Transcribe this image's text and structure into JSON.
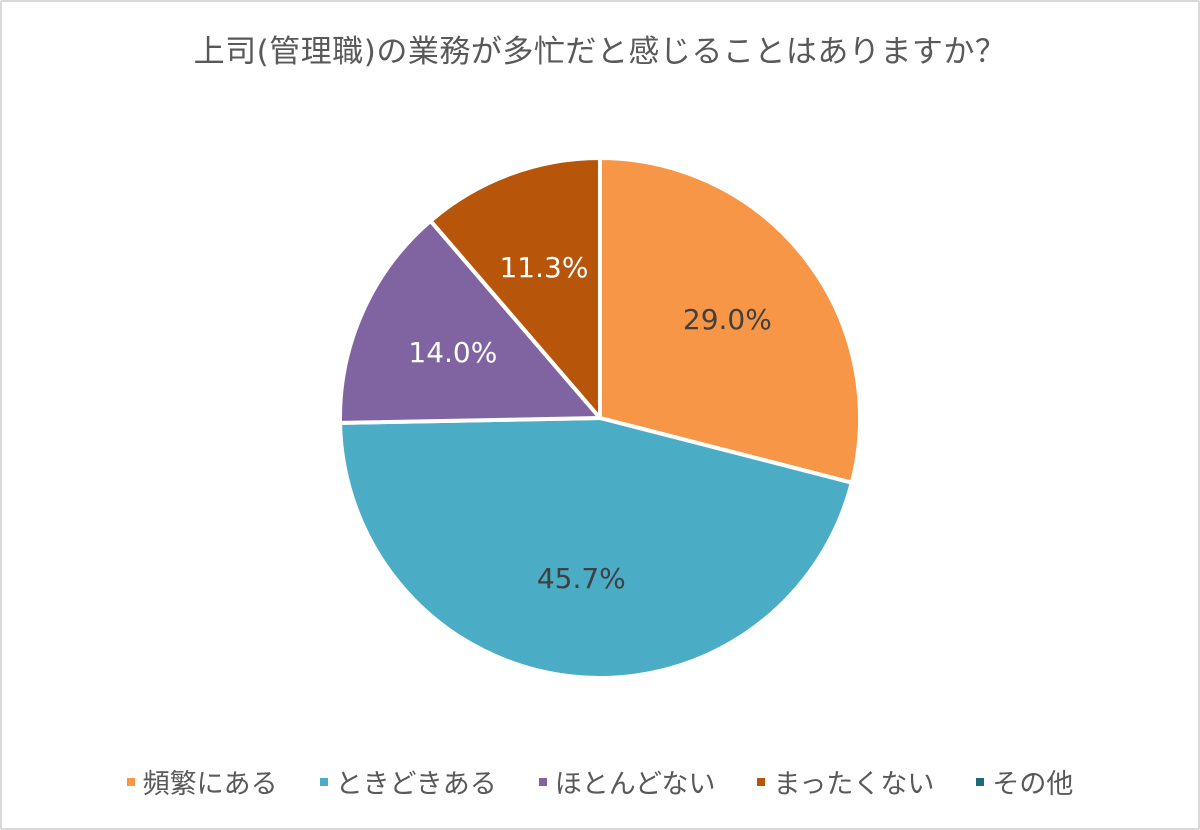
{
  "chart_data": {
    "type": "pie",
    "title": "上司(管理職)の業務が多忙だと感じることはありますか？",
    "categories": [
      "頻繁にある",
      "ときどきある",
      "ほとんどない",
      "まったくない",
      "その他"
    ],
    "values": [
      29.0,
      45.7,
      14.0,
      11.3,
      0.0
    ],
    "labels": [
      "29.0%",
      "45.7%",
      "14.0%",
      "11.3%",
      ""
    ],
    "colors": [
      "#F79646",
      "#4BACC6",
      "#8064A2",
      "#B7560A",
      "#1F6A7A"
    ],
    "label_colors": [
      "#404040",
      "#404040",
      "#ffffff",
      "#ffffff",
      "#404040"
    ],
    "start_angle_deg": 0,
    "direction": "clockwise",
    "legend_position": "bottom",
    "xlabel": "",
    "ylabel": ""
  },
  "legend": {
    "items": [
      {
        "label": "頻繁にある",
        "color": "#F79646"
      },
      {
        "label": "ときどきある",
        "color": "#4BACC6"
      },
      {
        "label": "ほとんどない",
        "color": "#8064A2"
      },
      {
        "label": "まったくない",
        "color": "#B7560A"
      },
      {
        "label": "その他",
        "color": "#1F6A7A"
      }
    ]
  }
}
